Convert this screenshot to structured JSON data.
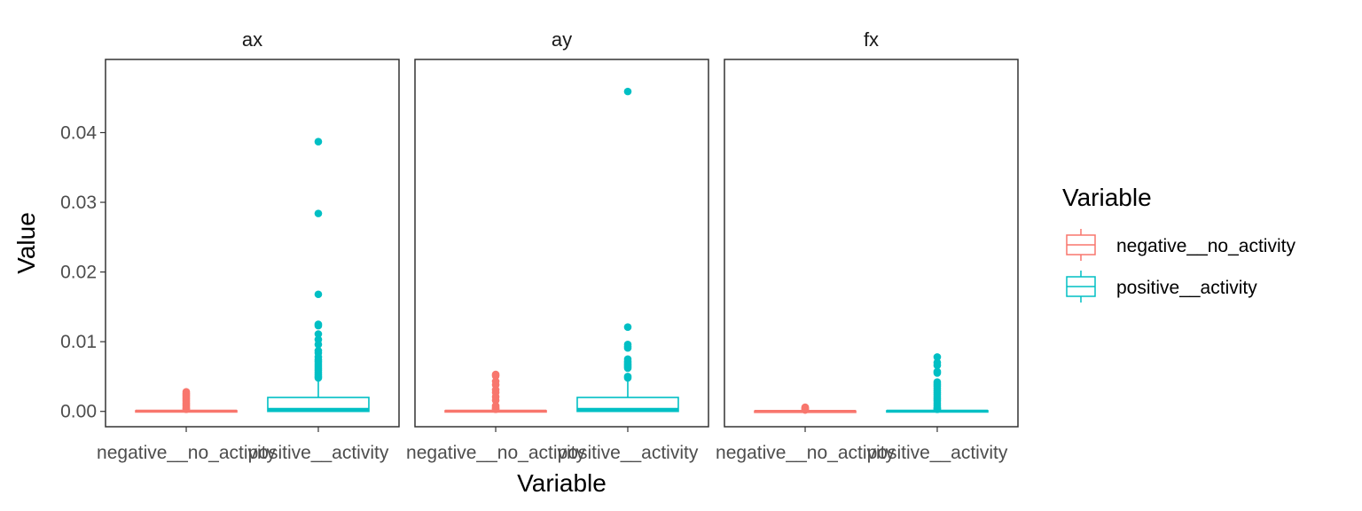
{
  "chart_data": {
    "type": "boxplot",
    "facets": [
      "ax",
      "ay",
      "fx"
    ],
    "categories": [
      "negative__no_activity",
      "positive__activity"
    ],
    "xlabel": "Variable",
    "ylabel": "Value",
    "ylim": [
      -0.0022,
      0.0505
    ],
    "yticks": [
      0.0,
      0.01,
      0.02,
      0.03,
      0.04
    ],
    "ytick_labels": [
      "0.00",
      "0.01",
      "0.02",
      "0.03",
      "0.04"
    ],
    "legend": {
      "title": "Variable",
      "position": "right",
      "entries": [
        "negative__no_activity",
        "positive__activity"
      ]
    },
    "colors": {
      "negative__no_activity": "#F8766D",
      "positive__activity": "#00BFC4"
    },
    "panels": [
      {
        "facet": "ax",
        "boxes": [
          {
            "category": "negative__no_activity",
            "q1": 0.0,
            "median": 5e-05,
            "q3": 0.0001,
            "whisker_low": 0.0,
            "whisker_high": 0.0002,
            "outliers": [
              0.0028,
              0.0026,
              0.0024,
              0.0022,
              0.002,
              0.0018,
              0.0016,
              0.0014,
              0.0012,
              0.001,
              0.0008,
              0.0006,
              0.0004,
              0.0003
            ]
          },
          {
            "category": "positive__activity",
            "q1": 0.0,
            "median": 0.0003,
            "q3": 0.002,
            "whisker_low": 0.0,
            "whisker_high": 0.0045,
            "outliers": [
              0.0387,
              0.0284,
              0.0168,
              0.0125,
              0.0123,
              0.0111,
              0.0103,
              0.0096,
              0.0087,
              0.0084,
              0.0078,
              0.0074,
              0.0071,
              0.0068,
              0.0065,
              0.0062,
              0.0059,
              0.0056,
              0.0053,
              0.005,
              0.0048
            ]
          }
        ]
      },
      {
        "facet": "ay",
        "boxes": [
          {
            "category": "negative__no_activity",
            "q1": 0.0,
            "median": 5e-05,
            "q3": 0.0001,
            "whisker_low": 0.0,
            "whisker_high": 0.0002,
            "outliers": [
              0.0053,
              0.0051,
              0.0043,
              0.0038,
              0.0031,
              0.0027,
              0.0021,
              0.0016,
              0.0008,
              0.0006,
              0.0004,
              0.0003
            ]
          },
          {
            "category": "positive__activity",
            "q1": 0.0,
            "median": 0.0003,
            "q3": 0.002,
            "whisker_low": 0.0,
            "whisker_high": 0.0045,
            "outliers": [
              0.0459,
              0.0121,
              0.0096,
              0.0093,
              0.0091,
              0.0075,
              0.0072,
              0.007,
              0.0068,
              0.0066,
              0.0064,
              0.0062,
              0.005,
              0.0048
            ]
          }
        ]
      },
      {
        "facet": "fx",
        "boxes": [
          {
            "category": "negative__no_activity",
            "q1": 0.0,
            "median": 2e-05,
            "q3": 5e-05,
            "whisker_low": 0.0,
            "whisker_high": 0.0001,
            "outliers": [
              0.0006,
              0.0005,
              0.0004,
              0.0003,
              0.0002
            ]
          },
          {
            "category": "positive__activity",
            "q1": 0.0,
            "median": 5e-05,
            "q3": 0.0001,
            "whisker_low": 0.0,
            "whisker_high": 0.0002,
            "outliers": [
              0.0078,
              0.007,
              0.0066,
              0.0057,
              0.0055,
              0.0042,
              0.0039,
              0.0036,
              0.0033,
              0.003,
              0.0027,
              0.0024,
              0.0021,
              0.0018,
              0.0015,
              0.0012,
              0.0009,
              0.0006,
              0.0004,
              0.0003
            ]
          }
        ]
      }
    ]
  }
}
